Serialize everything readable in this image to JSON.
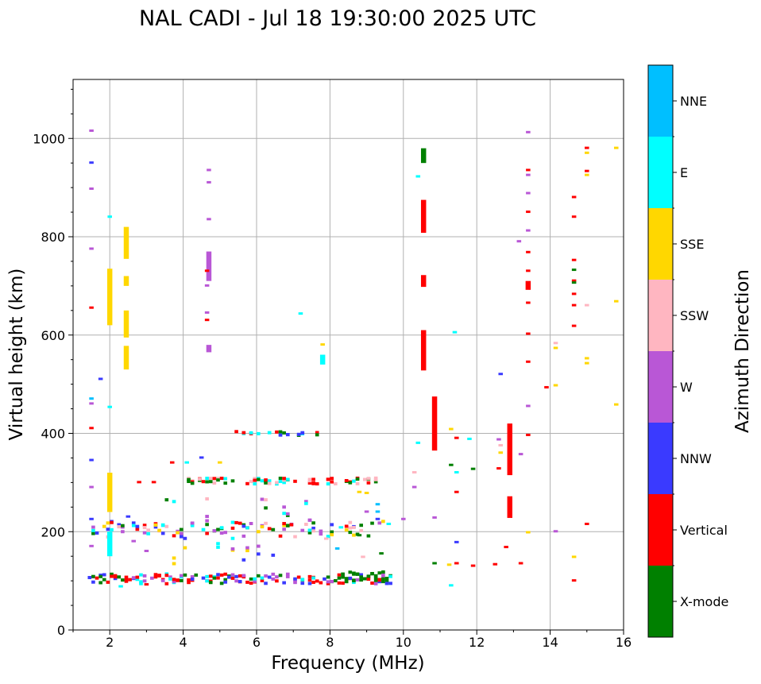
{
  "chart_data": {
    "type": "scatter",
    "title": "NAL CADI - Jul 18 19:30:00 2025 UTC",
    "xlabel": "Frequency (MHz)",
    "ylabel": "Virtual height (km)",
    "xlim": [
      1,
      16
    ],
    "ylim": [
      0,
      1120
    ],
    "xticks": [
      2,
      4,
      6,
      8,
      10,
      12,
      14,
      16
    ],
    "yticks": [
      0,
      200,
      400,
      600,
      800,
      1000
    ],
    "grid": true,
    "colorbar": {
      "label": "Azimuth Direction",
      "categories": [
        "X-mode",
        "Vertical",
        "NNW",
        "W",
        "SSW",
        "SSE",
        "E",
        "NNE"
      ],
      "colors": [
        "#008000",
        "#ff0000",
        "#3a3aff",
        "#b957d6",
        "#ffb6c1",
        "#ffd700",
        "#00ffff",
        "#00bfff"
      ]
    },
    "bands": [
      {
        "f": [
          1.4,
          9.6
        ],
        "h": 104,
        "dh": 10,
        "mix": [
          "Vertical",
          "Vertical",
          "X-mode",
          "E",
          "W",
          "NNW"
        ],
        "density": 0.95
      },
      {
        "f": [
          8.2,
          9.5
        ],
        "h": 108,
        "dh": 10,
        "mix": [
          "X-mode"
        ],
        "density": 1.0
      },
      {
        "f": [
          1.5,
          9.6
        ],
        "h": 205,
        "dh": 16,
        "mix": [
          "Vertical",
          "X-mode",
          "SSW",
          "E",
          "W",
          "SSE",
          "NNW"
        ],
        "density": 0.6
      },
      {
        "f": [
          3.2,
          6.5
        ],
        "h": 160,
        "dh": 30,
        "mix": [
          "E",
          "W",
          "SSE",
          "NNW"
        ],
        "density": 0.25
      },
      {
        "f": [
          3.5,
          7.5
        ],
        "h": 240,
        "dh": 30,
        "mix": [
          "Vertical",
          "W",
          "SSW",
          "E",
          "X-mode"
        ],
        "density": 0.3
      },
      {
        "f": [
          4.0,
          9.3
        ],
        "h": 303,
        "dh": 6,
        "mix": [
          "Vertical",
          "X-mode",
          "E",
          "SSW"
        ],
        "density": 0.6
      },
      {
        "f": [
          5.3,
          7.6
        ],
        "h": 400,
        "dh": 4,
        "mix": [
          "Vertical",
          "E",
          "X-mode",
          "NNW"
        ],
        "density": 0.5
      }
    ],
    "columns": [
      {
        "f": 10.55,
        "h": [
          950,
          980
        ],
        "dir": "X-mode"
      },
      {
        "f": 10.55,
        "h": [
          808,
          875
        ],
        "dir": "Vertical"
      },
      {
        "f": 10.55,
        "h": [
          698,
          722
        ],
        "dir": "Vertical"
      },
      {
        "f": 10.55,
        "h": [
          528,
          610
        ],
        "dir": "Vertical"
      },
      {
        "f": 10.85,
        "h": [
          365,
          475
        ],
        "dir": "Vertical"
      },
      {
        "f": 12.9,
        "h": [
          315,
          420
        ],
        "dir": "Vertical"
      },
      {
        "f": 12.9,
        "h": [
          228,
          272
        ],
        "dir": "Vertical"
      },
      {
        "f": 13.4,
        "h": [
          692,
          710
        ],
        "dir": "Vertical"
      },
      {
        "f": 2.45,
        "h": [
          755,
          820
        ],
        "dir": "SSE"
      },
      {
        "f": 2.45,
        "h": [
          595,
          650
        ],
        "dir": "SSE"
      },
      {
        "f": 2.45,
        "h": [
          530,
          578
        ],
        "dir": "SSE"
      },
      {
        "f": 2.45,
        "h": [
          700,
          720
        ],
        "dir": "SSE"
      },
      {
        "f": 2.0,
        "h": [
          620,
          735
        ],
        "dir": "SSE"
      },
      {
        "f": 2.0,
        "h": [
          150,
          200
        ],
        "dir": "E"
      },
      {
        "f": 2.0,
        "h": [
          240,
          320
        ],
        "dir": "SSE"
      },
      {
        "f": 4.7,
        "h": [
          710,
          770
        ],
        "dir": "W"
      },
      {
        "f": 4.7,
        "h": [
          565,
          580
        ],
        "dir": "W"
      },
      {
        "f": 7.8,
        "h": [
          540,
          560
        ],
        "dir": "E"
      }
    ],
    "points": [
      [
        1.5,
        1015,
        "W"
      ],
      [
        1.5,
        950,
        "NNW"
      ],
      [
        1.5,
        897,
        "W"
      ],
      [
        1.5,
        775,
        "W"
      ],
      [
        1.5,
        655,
        "Vertical"
      ],
      [
        1.5,
        470,
        "NNE"
      ],
      [
        1.5,
        460,
        "W"
      ],
      [
        1.5,
        410,
        "Vertical"
      ],
      [
        1.5,
        345,
        "NNW"
      ],
      [
        1.5,
        290,
        "W"
      ],
      [
        1.5,
        225,
        "NNW"
      ],
      [
        1.5,
        170,
        "W"
      ],
      [
        2.0,
        840,
        "E"
      ],
      [
        2.0,
        453,
        "E"
      ],
      [
        1.75,
        510,
        "NNW"
      ],
      [
        4.7,
        935,
        "W"
      ],
      [
        4.7,
        910,
        "W"
      ],
      [
        4.7,
        835,
        "W"
      ],
      [
        4.65,
        730,
        "Vertical"
      ],
      [
        4.65,
        700,
        "W"
      ],
      [
        4.65,
        630,
        "Vertical"
      ],
      [
        4.65,
        645,
        "W"
      ],
      [
        7.2,
        643,
        "E"
      ],
      [
        7.8,
        580,
        "SSE"
      ],
      [
        10.4,
        922,
        "E"
      ],
      [
        10.4,
        380,
        "E"
      ],
      [
        10.3,
        320,
        "SSW"
      ],
      [
        10.3,
        290,
        "W"
      ],
      [
        10.0,
        225,
        "W"
      ],
      [
        10.85,
        228,
        "W"
      ],
      [
        11.4,
        605,
        "E"
      ],
      [
        11.3,
        408,
        "SSE"
      ],
      [
        11.45,
        390,
        "Vertical"
      ],
      [
        11.3,
        335,
        "X-mode"
      ],
      [
        11.45,
        320,
        "E"
      ],
      [
        11.45,
        280,
        "Vertical"
      ],
      [
        11.8,
        388,
        "E"
      ],
      [
        11.9,
        327,
        "X-mode"
      ],
      [
        11.45,
        178,
        "NNW"
      ],
      [
        11.3,
        90,
        "E"
      ],
      [
        11.25,
        132,
        "SSE"
      ],
      [
        11.45,
        135,
        "Vertical"
      ],
      [
        11.9,
        130,
        "Vertical"
      ],
      [
        10.85,
        135,
        "X-mode"
      ],
      [
        12.65,
        520,
        "NNW"
      ],
      [
        12.6,
        387,
        "W"
      ],
      [
        12.65,
        375,
        "SSW"
      ],
      [
        12.65,
        360,
        "SSE"
      ],
      [
        12.6,
        328,
        "Vertical"
      ],
      [
        12.5,
        133,
        "Vertical"
      ],
      [
        12.8,
        168,
        "Vertical"
      ],
      [
        13.2,
        135,
        "Vertical"
      ],
      [
        13.2,
        357,
        "W"
      ],
      [
        13.15,
        790,
        "W"
      ],
      [
        13.4,
        1012,
        "W"
      ],
      [
        13.4,
        935,
        "Vertical"
      ],
      [
        13.4,
        925,
        "W"
      ],
      [
        13.4,
        888,
        "W"
      ],
      [
        13.4,
        850,
        "Vertical"
      ],
      [
        13.4,
        812,
        "W"
      ],
      [
        13.4,
        768,
        "Vertical"
      ],
      [
        13.4,
        730,
        "Vertical"
      ],
      [
        13.4,
        665,
        "Vertical"
      ],
      [
        13.4,
        602,
        "Vertical"
      ],
      [
        13.4,
        545,
        "Vertical"
      ],
      [
        13.4,
        455,
        "W"
      ],
      [
        13.4,
        396,
        "Vertical"
      ],
      [
        13.4,
        198,
        "SSE"
      ],
      [
        13.9,
        493,
        "Vertical"
      ],
      [
        14.15,
        497,
        "SSE"
      ],
      [
        14.15,
        583,
        "SSW"
      ],
      [
        14.15,
        573,
        "SSE"
      ],
      [
        14.15,
        200,
        "W"
      ],
      [
        14.65,
        880,
        "Vertical"
      ],
      [
        14.65,
        840,
        "Vertical"
      ],
      [
        14.65,
        752,
        "Vertical"
      ],
      [
        14.65,
        732,
        "X-mode"
      ],
      [
        14.65,
        710,
        "Vertical"
      ],
      [
        14.65,
        706,
        "X-mode"
      ],
      [
        14.65,
        683,
        "Vertical"
      ],
      [
        14.65,
        660,
        "Vertical"
      ],
      [
        14.65,
        618,
        "Vertical"
      ],
      [
        14.65,
        148,
        "SSE"
      ],
      [
        14.65,
        100,
        "Vertical"
      ],
      [
        15.0,
        980,
        "Vertical"
      ],
      [
        15.0,
        970,
        "SSE"
      ],
      [
        15.0,
        933,
        "Vertical"
      ],
      [
        15.0,
        925,
        "SSE"
      ],
      [
        15.0,
        660,
        "SSW"
      ],
      [
        15.0,
        552,
        "SSE"
      ],
      [
        15.0,
        542,
        "SSE"
      ],
      [
        15.0,
        215,
        "Vertical"
      ],
      [
        15.8,
        980,
        "SSE"
      ],
      [
        15.8,
        668,
        "SSE"
      ],
      [
        15.8,
        458,
        "SSE"
      ],
      [
        8.8,
        280,
        "SSE"
      ],
      [
        9.0,
        278,
        "SSE"
      ],
      [
        9.3,
        255,
        "NNE"
      ],
      [
        9.3,
        240,
        "NNE"
      ],
      [
        9.3,
        225,
        "NNW"
      ],
      [
        9.0,
        240,
        "W"
      ],
      [
        3.2,
        300,
        "Vertical"
      ],
      [
        2.8,
        300,
        "Vertical"
      ],
      [
        3.7,
        340,
        "Vertical"
      ],
      [
        4.1,
        340,
        "E"
      ],
      [
        4.5,
        350,
        "NNW"
      ],
      [
        5.0,
        340,
        "SSE"
      ],
      [
        3.0,
        160,
        "W"
      ],
      [
        2.65,
        180,
        "W"
      ],
      [
        9.6,
        215,
        "E"
      ],
      [
        8.3,
        208,
        "E"
      ],
      [
        8.2,
        165,
        "NNE"
      ],
      [
        7.9,
        185,
        "SSW"
      ],
      [
        8.8,
        192,
        "X-mode"
      ],
      [
        8.9,
        148,
        "SSW"
      ],
      [
        9.4,
        155,
        "X-mode"
      ],
      [
        2.5,
        230,
        "NNW"
      ],
      [
        2.3,
        88,
        "E"
      ],
      [
        3.0,
        92,
        "Vertical"
      ]
    ]
  }
}
